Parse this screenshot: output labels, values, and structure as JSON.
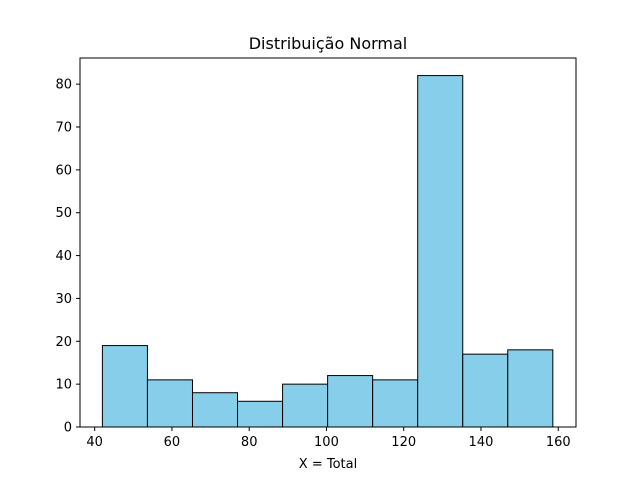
{
  "chart_data": {
    "type": "bar",
    "title": "Distribuição Normal",
    "xlabel": "X = Total",
    "ylabel": "",
    "xlim": [
      36.2,
      164.6
    ],
    "ylim": [
      0,
      86.1
    ],
    "xticks": [
      40,
      60,
      80,
      100,
      120,
      140,
      160
    ],
    "yticks": [
      0,
      10,
      20,
      30,
      40,
      50,
      60,
      70,
      80
    ],
    "bins": [
      {
        "start": 42.0,
        "end": 53.66,
        "count": 19
      },
      {
        "start": 53.66,
        "end": 65.32,
        "count": 11
      },
      {
        "start": 65.32,
        "end": 76.98,
        "count": 8
      },
      {
        "start": 76.98,
        "end": 88.64,
        "count": 6
      },
      {
        "start": 88.64,
        "end": 100.3,
        "count": 10
      },
      {
        "start": 100.3,
        "end": 111.96,
        "count": 12
      },
      {
        "start": 111.96,
        "end": 123.62,
        "count": 11
      },
      {
        "start": 123.62,
        "end": 135.28,
        "count": 82
      },
      {
        "start": 135.28,
        "end": 146.94,
        "count": 17
      },
      {
        "start": 146.94,
        "end": 158.6,
        "count": 18
      }
    ],
    "bar_color": "#87ceeb",
    "edge_color": "#000000",
    "grid": false,
    "legend": "none"
  }
}
